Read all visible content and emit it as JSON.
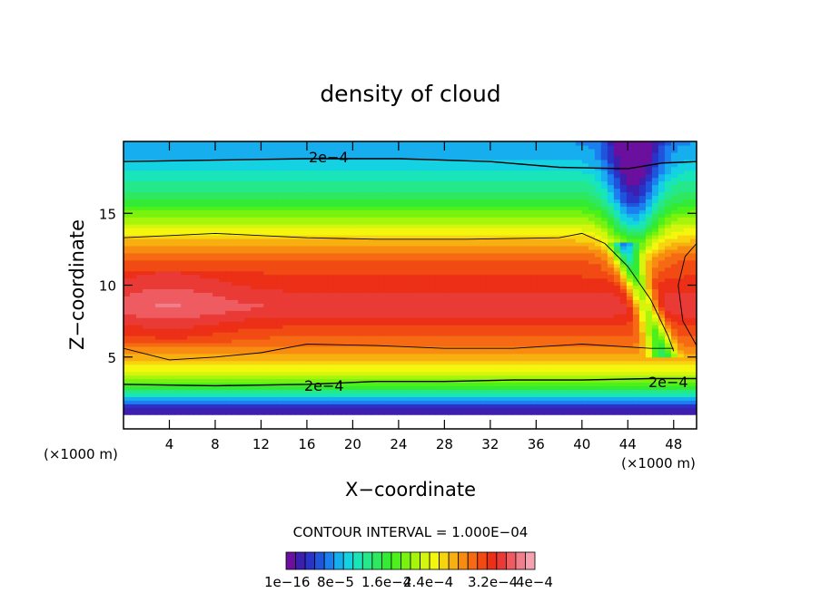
{
  "chart_data": {
    "type": "heatmap",
    "title": "density of cloud",
    "xlabel": "X−coordinate",
    "ylabel": "Z−coordinate",
    "x_unit_left": "(×1000 m)",
    "x_unit_right": "(×1000 m)",
    "xlim": [
      0,
      50
    ],
    "ylim": [
      0,
      20
    ],
    "x_ticks": [
      4,
      8,
      12,
      16,
      20,
      24,
      28,
      32,
      36,
      40,
      44,
      48
    ],
    "y_ticks": [
      5,
      10,
      15
    ],
    "grid": false,
    "contour_interval_text": "CONTOUR INTERVAL = 1.000E−04",
    "contour_labels": [
      "2e−4",
      "2e−4",
      "2e−4"
    ],
    "colorbar": {
      "labels": [
        "1e−16",
        "8e−5",
        "1.6e−4",
        "2.4e−4",
        "3.2e−4",
        "4e−4"
      ],
      "colors": [
        "#6a0f9e",
        "#3d1fb0",
        "#2a33c8",
        "#1e55dc",
        "#1c7ff0",
        "#17aeee",
        "#14d2e2",
        "#19e6b8",
        "#25e88a",
        "#2ee860",
        "#33ea35",
        "#4cf01a",
        "#7af210",
        "#a8f50c",
        "#d4f60c",
        "#f4f60e",
        "#f7d40f",
        "#f7b010",
        "#f78c11",
        "#f56a12",
        "#f14a13",
        "#ec2f17",
        "#ea3a36",
        "#ee5c62",
        "#f07f8c",
        "#f4a1b0"
      ]
    },
    "levels": [
      {
        "z": 1.5,
        "value": 2e-05
      },
      {
        "z": 2.0,
        "value": 8e-05
      },
      {
        "z": 2.7,
        "value": 0.00015
      },
      {
        "z": 4.0,
        "value": 0.00024
      },
      {
        "z": 5.5,
        "value": 0.0003
      },
      {
        "z": 8.5,
        "value": 0.00037
      },
      {
        "z": 12.0,
        "value": 0.00032
      },
      {
        "z": 14.0,
        "value": 0.00024
      },
      {
        "z": 16.0,
        "value": 0.00016
      },
      {
        "z": 18.5,
        "value": 0.0001
      },
      {
        "z": 20.0,
        "value": 8e-05
      }
    ]
  }
}
